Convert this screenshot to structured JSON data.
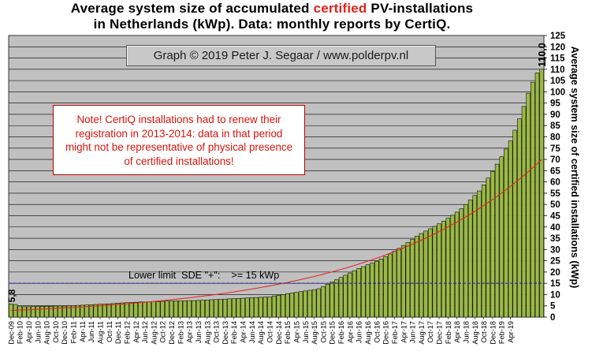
{
  "title": {
    "line1_pre": "Average system size of accumulated ",
    "line1_highlight": "certified",
    "line1_post": " PV-installations",
    "line2": "in Netherlands (kWp). Data: monthly reports by CertiQ."
  },
  "credit": "Graph © 2019 Peter J. Segaar / www.polderpv.nl",
  "note": {
    "lines": [
      "Note! CertiQ installations had to renew their",
      "registration in 2013-2014:  data in that period",
      "might not be representative of physical presence",
      "of certified installations!"
    ]
  },
  "colors": {
    "plot_bg": "#c0c0c0",
    "bar_fill": "#9ab946",
    "bar_edge": "#000000",
    "trend": "#e8201a",
    "limit_line": "#2020b0",
    "note_text": "#d8140c"
  },
  "chart_data": {
    "type": "bar",
    "title": "Average system size of accumulated certified PV-installations in Netherlands (kWp). Data: monthly reports by CertiQ.",
    "ylabel": "Average system size of certified installations (kWp)",
    "xlabel": "",
    "ylim": [
      0,
      125
    ],
    "ytick_step": 5,
    "grid": true,
    "y_axis_side": "right",
    "start_month": "Dec-09",
    "x_tick_labels": [
      "Dec-09",
      "Feb-10",
      "Apr-10",
      "Jun-10",
      "Aug-10",
      "Oct-10",
      "Dec-10",
      "Feb-11",
      "Apr-11",
      "Jun-11",
      "Aug-11",
      "Oct-11",
      "Dec-11",
      "Feb-12",
      "Apr-12",
      "Jun-12",
      "Aug-12",
      "Oct-12",
      "Dec-12",
      "Feb-13",
      "Apr-13",
      "Jun-13",
      "Aug-13",
      "Oct-13",
      "Dec-13",
      "Feb-14",
      "Apr-14",
      "Jun-14",
      "Aug-14",
      "Oct-14",
      "Dec-14",
      "Feb-15",
      "Apr-15",
      "Jun-15",
      "Aug-15",
      "Oct-15",
      "Dec-15",
      "Feb-16",
      "Apr-16",
      "Jun-16",
      "Aug-16",
      "Oct-16",
      "Dec-16",
      "Feb-17",
      "Apr-17",
      "Jun-17",
      "Aug-17",
      "Oct-17",
      "Dec-17",
      "Feb-18",
      "Apr-18",
      "Jun-18",
      "Aug-18",
      "Oct-18",
      "Dec-18",
      "Feb-19",
      "Apr-19"
    ],
    "values": [
      5.8,
      5.6,
      4.9,
      4.6,
      4.6,
      4.7,
      4.7,
      4.8,
      4.8,
      4.8,
      4.9,
      4.9,
      4.9,
      5.0,
      5.1,
      5.2,
      5.3,
      5.4,
      5.5,
      5.6,
      5.7,
      5.8,
      5.9,
      6.0,
      6.2,
      6.3,
      6.4,
      6.5,
      6.6,
      6.7,
      6.7,
      6.8,
      6.9,
      6.9,
      7.0,
      7.1,
      7.1,
      7.2,
      7.2,
      7.2,
      7.3,
      7.3,
      7.4,
      7.5,
      7.6,
      7.7,
      7.8,
      7.9,
      8.0,
      8.1,
      8.2,
      8.3,
      8.4,
      8.5,
      8.6,
      8.7,
      8.8,
      8.9,
      9.0,
      9.4,
      9.7,
      10.0,
      10.4,
      10.7,
      11.0,
      11.3,
      11.6,
      11.9,
      12.2,
      12.6,
      13.6,
      14.6,
      15.6,
      16.6,
      17.6,
      18.6,
      19.6,
      20.6,
      21.6,
      22.4,
      23.2,
      24.0,
      24.8,
      25.8,
      26.9,
      28.0,
      29.2,
      30.5,
      31.8,
      33.1,
      34.5,
      35.9,
      37.1,
      38.2,
      39.2,
      40.3,
      41.4,
      42.6,
      43.9,
      45.2,
      46.6,
      48.1,
      50.0,
      52.0,
      54.0,
      56.0,
      58.7,
      61.7,
      64.7,
      67.9,
      71.2,
      74.6,
      78.2,
      83.0,
      88.0,
      93.5,
      99.4,
      104.3,
      108.4,
      110.0
    ],
    "first_value_label": "5,8",
    "last_value_label": "110,0",
    "trend_line": {
      "type": "exponential-fit"
    },
    "reference_line": {
      "value": 15,
      "label": "Lower limit  SDE \"+\":    >= 15 kWp"
    }
  }
}
